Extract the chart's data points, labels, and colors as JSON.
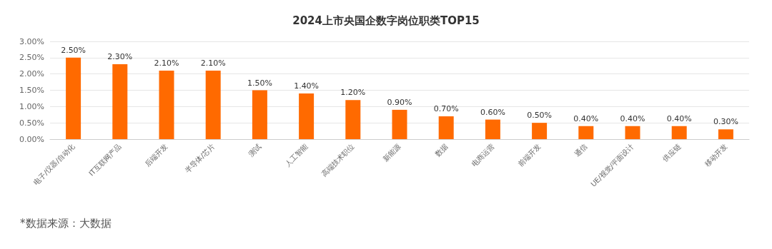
{
  "chart_data": {
    "type": "bar",
    "title": "2024上市央国企数字岗位职类TOP15",
    "categories": [
      "电子/仪器/自动化",
      "IT互联网产品",
      "后端开发",
      "半导体/芯片",
      "测试",
      "人工智能",
      "高端技术职位",
      "新能源",
      "数据",
      "电商运营",
      "前端开发",
      "通信",
      "UE/视觉/平面设计",
      "供应链",
      "移动开发"
    ],
    "values": [
      2.5,
      2.3,
      2.1,
      2.1,
      1.5,
      1.4,
      1.2,
      0.9,
      0.7,
      0.6,
      0.5,
      0.4,
      0.4,
      0.4,
      0.3
    ],
    "value_labels": [
      "2.50%",
      "2.30%",
      "2.10%",
      "2.10%",
      "1.50%",
      "1.40%",
      "1.20%",
      "0.90%",
      "0.70%",
      "0.60%",
      "0.50%",
      "0.40%",
      "0.40%",
      "0.40%",
      "0.30%"
    ],
    "color": "#ff6a00",
    "ylim": [
      0,
      3
    ],
    "yticks": [
      {
        "value": 0,
        "label": "0.00%"
      },
      {
        "value": 0.5,
        "label": "0.50%"
      },
      {
        "value": 1,
        "label": "1.00%"
      },
      {
        "value": 1.5,
        "label": "1.50%"
      },
      {
        "value": 2,
        "label": "2.00%"
      },
      {
        "value": 2.5,
        "label": "2.50%"
      },
      {
        "value": 3,
        "label": "3.00%"
      }
    ],
    "grid": "y",
    "annotations": [
      "*数据来源：大数据"
    ]
  }
}
